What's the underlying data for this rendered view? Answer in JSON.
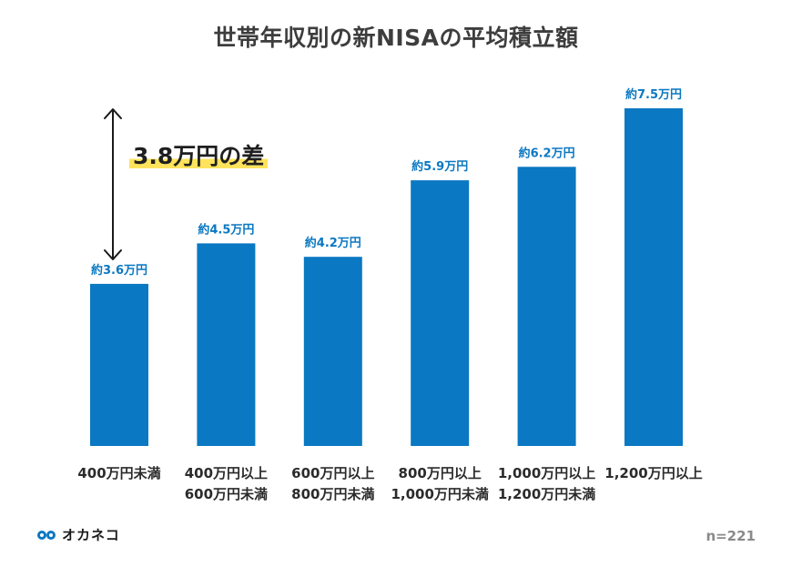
{
  "chart_data": {
    "type": "bar",
    "title": "世帯年収別の新NISAの平均積立額",
    "categories": [
      [
        "400万円未満"
      ],
      [
        "400万円以上",
        "600万円未満"
      ],
      [
        "600万円以上",
        "800万円未満"
      ],
      [
        "800万円以上",
        "1,000万円未満"
      ],
      [
        "1,000万円以上",
        "1,200万円未満"
      ],
      [
        "1,200万円以上"
      ]
    ],
    "values": [
      3.6,
      4.5,
      4.2,
      5.9,
      6.2,
      7.5
    ],
    "data_labels": [
      "約3.6万円",
      "約4.5万円",
      "約4.2万円",
      "約5.9万円",
      "約6.2万円",
      "約7.5万円"
    ],
    "unit": "万円",
    "ylim": [
      0,
      7.5
    ],
    "grid": false,
    "annotation": "3.8万円の差",
    "bar_color": "#0a78c2",
    "label_color": "#0a78c2"
  },
  "footer": {
    "logo_text": "オカネコ",
    "sample_size": "n=221"
  },
  "colors": {
    "title": "#3d3d3d",
    "highlight": "#ffe35c"
  }
}
